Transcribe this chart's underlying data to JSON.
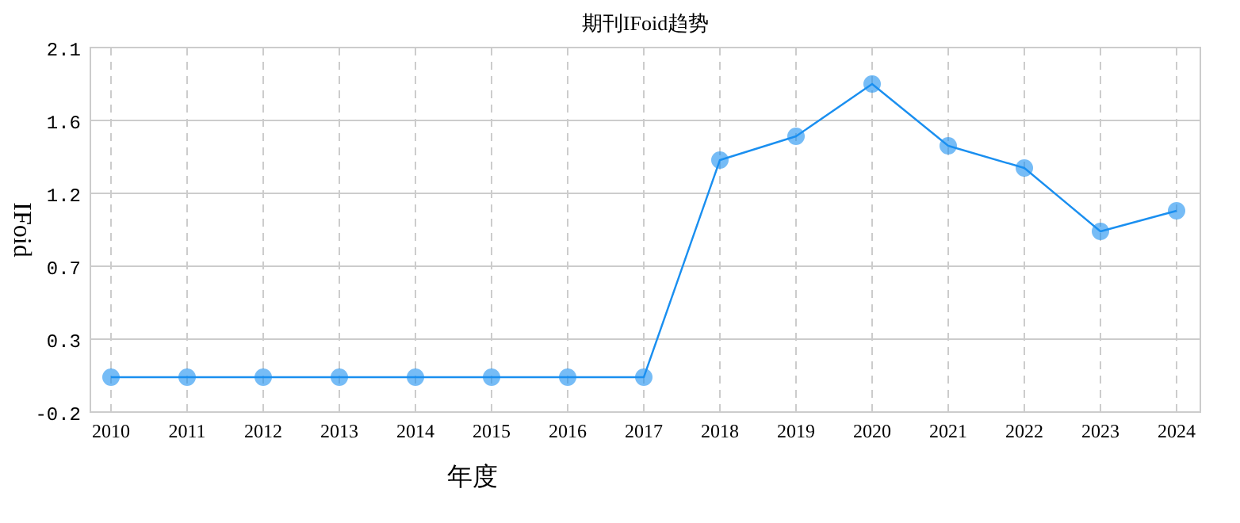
{
  "chart_data": {
    "type": "line",
    "title": "期刊IFoid趋势",
    "xlabel": "年度",
    "ylabel": "IFoid",
    "categories": [
      "2010",
      "2011",
      "2012",
      "2013",
      "2014",
      "2015",
      "2016",
      "2017",
      "2018",
      "2019",
      "2020",
      "2021",
      "2022",
      "2023",
      "2024"
    ],
    "series": [
      {
        "color": "#1a8ff0",
        "values": [
          0.02,
          0.02,
          0.02,
          0.02,
          0.02,
          0.02,
          0.02,
          0.02,
          1.39,
          1.54,
          1.87,
          1.48,
          1.34,
          0.94,
          1.07
        ]
      }
    ],
    "ylim": [
      -0.2,
      2.1
    ],
    "yticks": [
      -0.2,
      {
        "value": 0.26,
        "label": "0.3"
      },
      {
        "value": 0.72,
        "label": "0.7"
      },
      {
        "value": 1.18,
        "label": "1.2"
      },
      {
        "value": 1.64,
        "label": "1.6"
      },
      2.1
    ],
    "grid": true,
    "marker": "circle",
    "line_style": "solid"
  }
}
